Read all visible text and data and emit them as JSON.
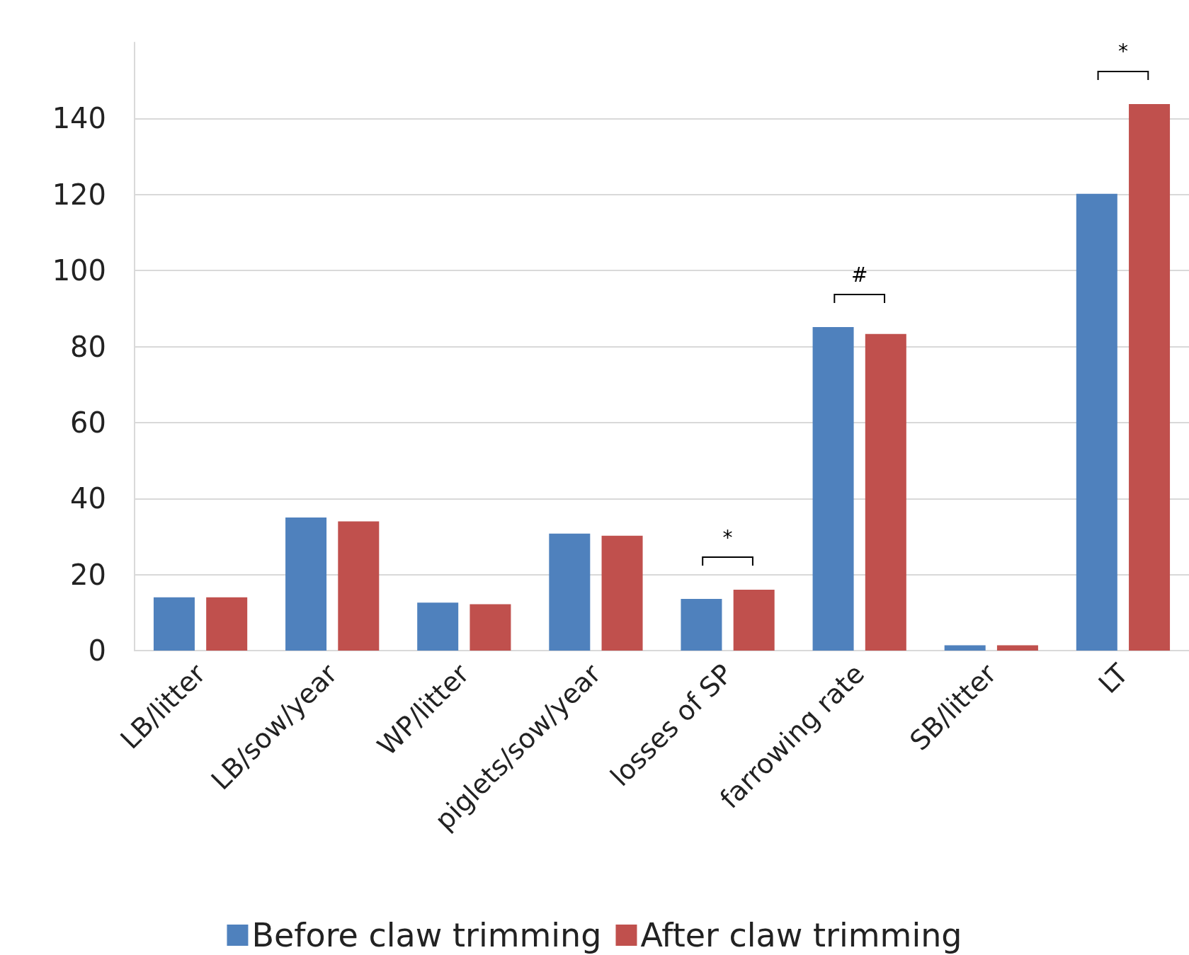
{
  "chart_data": {
    "type": "bar",
    "categories": [
      "LB/litter",
      "LB/sow/year",
      "WP/litter",
      "piglets/sow/year",
      "losses of SP",
      "farrowing rate",
      "SB/litter",
      "LT"
    ],
    "series": [
      {
        "name": "Before claw trimming",
        "color": "#4f81bd",
        "values": [
          14.0,
          35.0,
          12.6,
          30.8,
          13.6,
          85.1,
          1.4,
          120.2
        ]
      },
      {
        "name": "After claw trimming",
        "color": "#c0504d",
        "values": [
          14.0,
          34.0,
          12.2,
          30.2,
          16.0,
          83.3,
          1.4,
          143.8
        ]
      }
    ],
    "ylim": [
      0,
      160
    ],
    "yticks": [
      0,
      20,
      40,
      60,
      80,
      100,
      120,
      140
    ],
    "grid": "y",
    "legend": "bottom",
    "annotations": [
      "*",
      "#",
      "*"
    ]
  }
}
